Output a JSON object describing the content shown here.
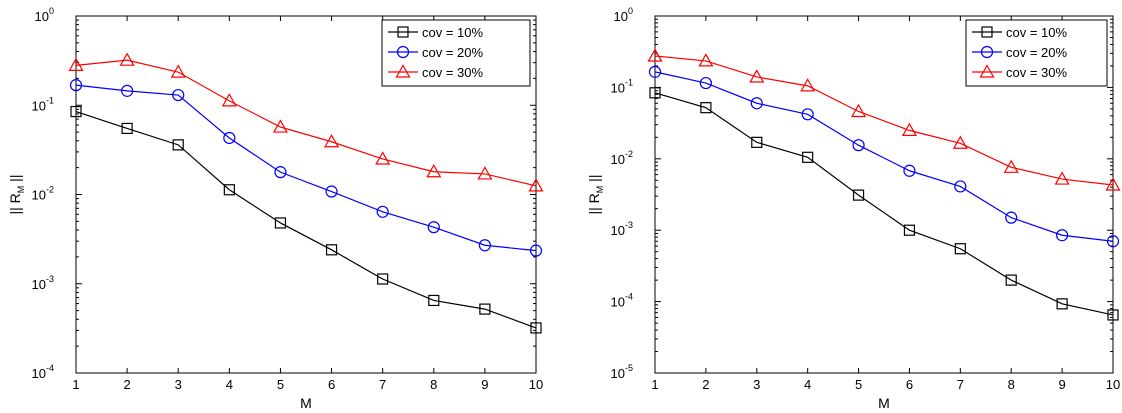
{
  "chart_data": [
    {
      "type": "line",
      "x": [
        1,
        2,
        3,
        4,
        5,
        6,
        7,
        8,
        9,
        10
      ],
      "xlabel": "M",
      "ylabel": "|| R_M ||",
      "ylabel_main": "|| R",
      "ylabel_sub": "M",
      "ylabel_end": " ||",
      "xlim": [
        1,
        10
      ],
      "ylim": [
        0.0001,
        1
      ],
      "yscale": "log",
      "x_ticks": [
        "1",
        "2",
        "3",
        "4",
        "5",
        "6",
        "7",
        "8",
        "9",
        "10"
      ],
      "y_ticks": [
        {
          "base": "10",
          "exp": "-4"
        },
        {
          "base": "10",
          "exp": "-3"
        },
        {
          "base": "10",
          "exp": "-2"
        },
        {
          "base": "10",
          "exp": "-1"
        },
        {
          "base": "10",
          "exp": "0"
        }
      ],
      "grid": false,
      "legend_position": "top-right",
      "series": [
        {
          "name": "cov = 10%",
          "marker": "square",
          "color": "#000000",
          "values": [
            0.085,
            0.055,
            0.036,
            0.0113,
            0.0048,
            0.0024,
            0.00113,
            0.00065,
            0.00052,
            0.00032
          ]
        },
        {
          "name": "cov = 20%",
          "marker": "circle",
          "color": "#0000ff",
          "values": [
            0.168,
            0.145,
            0.13,
            0.043,
            0.0178,
            0.0108,
            0.0064,
            0.0043,
            0.0027,
            0.00235
          ]
        },
        {
          "name": "cov = 30%",
          "marker": "triangle",
          "color": "#ff0000",
          "values": [
            0.28,
            0.32,
            0.235,
            0.112,
            0.057,
            0.039,
            0.025,
            0.018,
            0.017,
            0.0125
          ]
        }
      ]
    },
    {
      "type": "line",
      "x": [
        1,
        2,
        3,
        4,
        5,
        6,
        7,
        8,
        9,
        10
      ],
      "xlabel": "M",
      "ylabel": "|| R_M ||",
      "ylabel_main": "|| R",
      "ylabel_sub": "M",
      "ylabel_end": " ||",
      "xlim": [
        1,
        10
      ],
      "ylim": [
        1e-05,
        1
      ],
      "yscale": "log",
      "x_ticks": [
        "1",
        "2",
        "3",
        "4",
        "5",
        "6",
        "7",
        "8",
        "9",
        "10"
      ],
      "y_ticks": [
        {
          "base": "10",
          "exp": "-5"
        },
        {
          "base": "10",
          "exp": "-4"
        },
        {
          "base": "10",
          "exp": "-3"
        },
        {
          "base": "10",
          "exp": "-2"
        },
        {
          "base": "10",
          "exp": "-1"
        },
        {
          "base": "10",
          "exp": "0"
        }
      ],
      "grid": false,
      "legend_position": "top-right",
      "series": [
        {
          "name": "cov = 10%",
          "marker": "square",
          "color": "#000000",
          "values": [
            0.084,
            0.052,
            0.017,
            0.0105,
            0.0031,
            0.001,
            0.00055,
            0.0002,
            9.3e-05,
            6.5e-05
          ]
        },
        {
          "name": "cov = 20%",
          "marker": "circle",
          "color": "#0000ff",
          "values": [
            0.165,
            0.115,
            0.06,
            0.042,
            0.0155,
            0.0068,
            0.0041,
            0.0015,
            0.00085,
            0.0007
          ]
        },
        {
          "name": "cov = 30%",
          "marker": "triangle",
          "color": "#ff0000",
          "values": [
            0.275,
            0.235,
            0.14,
            0.105,
            0.046,
            0.025,
            0.0165,
            0.0076,
            0.0052,
            0.0043
          ]
        }
      ]
    }
  ]
}
